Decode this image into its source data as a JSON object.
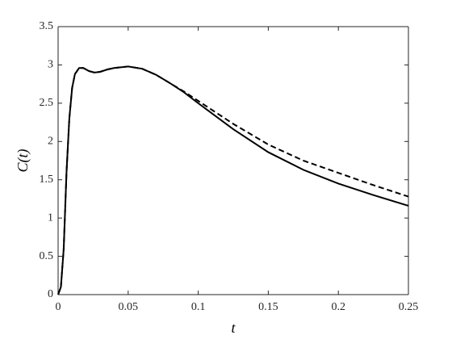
{
  "chart_data": {
    "type": "line",
    "xlabel": "t",
    "ylabel": "C(t)",
    "x": [
      0,
      0.002,
      0.004,
      0.006,
      0.008,
      0.01,
      0.012,
      0.015,
      0.018,
      0.022,
      0.026,
      0.03,
      0.035,
      0.04,
      0.05,
      0.06,
      0.07,
      0.08,
      0.09,
      0.1,
      0.125,
      0.15,
      0.175,
      0.2,
      0.225,
      0.25
    ],
    "series": [
      {
        "color": "#000000",
        "line_style": "solid",
        "values": [
          0,
          0.1,
          0.6,
          1.6,
          2.3,
          2.7,
          2.88,
          2.96,
          2.96,
          2.92,
          2.9,
          2.91,
          2.94,
          2.96,
          2.98,
          2.95,
          2.87,
          2.76,
          2.64,
          2.5,
          2.16,
          1.86,
          1.63,
          1.45,
          1.3,
          1.16
        ]
      },
      {
        "color": "#000000",
        "line_style": "dashed",
        "values": [
          0,
          0.1,
          0.6,
          1.6,
          2.3,
          2.7,
          2.88,
          2.96,
          2.96,
          2.92,
          2.9,
          2.91,
          2.94,
          2.96,
          2.98,
          2.95,
          2.87,
          2.76,
          2.65,
          2.53,
          2.23,
          1.96,
          1.75,
          1.59,
          1.43,
          1.28
        ]
      }
    ],
    "xlim": [
      0,
      0.25
    ],
    "xticks": [
      0,
      0.05,
      0.1,
      0.15,
      0.2,
      0.25
    ],
    "ylim": [
      0,
      3.5
    ],
    "yticks": [
      0,
      0.5,
      1,
      1.5,
      2,
      2.5,
      3,
      3.5
    ],
    "grid": false,
    "box": true
  }
}
